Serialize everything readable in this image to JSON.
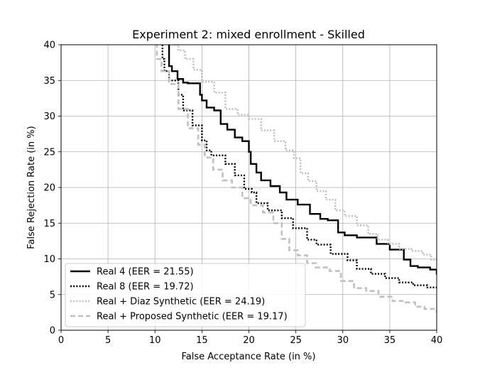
{
  "chart_data": {
    "type": "line",
    "title": "Experiment 2: mixed enrollment - Skilled",
    "xlabel": "False Acceptance Rate (in %)",
    "ylabel": "False Rejection Rate (in %)",
    "xlim": [
      0,
      40
    ],
    "ylim": [
      0,
      40
    ],
    "xticks": [
      "0",
      "5",
      "10",
      "15",
      "20",
      "25",
      "30",
      "35",
      "40"
    ],
    "yticks": [
      "0",
      "5",
      "10",
      "15",
      "20",
      "25",
      "30",
      "35",
      "40"
    ],
    "grid": true,
    "legend_position": "lower-left",
    "series": [
      {
        "name": "Real 4 (EER = 21.55)",
        "color": "#000000",
        "dash": "solid",
        "x": [
          11.5,
          11.5,
          11.8,
          12.4,
          13.0,
          13.5,
          14.8,
          15.0,
          15.5,
          16.3,
          17.0,
          17.7,
          18.5,
          19.3,
          20.0,
          20.2,
          20.8,
          21.3,
          22.3,
          23.3,
          24.0,
          25.2,
          26.5,
          27.6,
          28.4,
          29.5,
          30.2,
          31.5,
          33.6,
          35.0,
          36.5,
          37.2,
          38.0,
          39.3,
          40.0
        ],
        "y": [
          40.0,
          37.0,
          36.3,
          35.2,
          34.7,
          34.6,
          33.0,
          32.2,
          31.2,
          30.8,
          28.9,
          28.1,
          27.0,
          26.5,
          25.0,
          23.3,
          22.1,
          21.0,
          20.2,
          19.3,
          18.3,
          17.6,
          16.3,
          15.6,
          15.4,
          13.7,
          13.3,
          13.0,
          12.1,
          11.3,
          9.9,
          9.0,
          8.8,
          8.5,
          7.8
        ]
      },
      {
        "name": "Real 8 (EER = 19.72)",
        "color": "#000000",
        "dash": "dotted",
        "x": [
          10.8,
          10.8,
          11.0,
          11.5,
          12.5,
          13.0,
          14.0,
          15.0,
          15.5,
          16.0,
          17.5,
          18.5,
          19.5,
          20.3,
          20.8,
          22.0,
          23.5,
          24.7,
          26.2,
          27.2,
          28.7,
          30.5,
          31.5,
          33.0,
          34.5,
          36.0,
          37.5,
          39.0,
          40.0
        ],
        "y": [
          40.0,
          38.0,
          36.3,
          35.0,
          33.0,
          30.8,
          28.7,
          26.6,
          25.2,
          24.5,
          23.3,
          21.7,
          19.8,
          19.3,
          17.8,
          16.8,
          15.7,
          14.3,
          12.7,
          12.0,
          10.7,
          9.8,
          8.6,
          7.9,
          7.3,
          6.7,
          6.3,
          6.0,
          5.9
        ]
      },
      {
        "name": "Real + Diaz Synthetic (EER = 24.19)",
        "color": "#c0c0c0",
        "dash": "dotted",
        "x": [
          12.0,
          12.5,
          13.2,
          14.1,
          15.0,
          16.3,
          17.5,
          18.8,
          20.0,
          21.3,
          22.7,
          23.9,
          24.8,
          25.5,
          26.3,
          27.2,
          28.2,
          29.2,
          30.2,
          31.5,
          32.7,
          33.7,
          34.8,
          36.0,
          37.3,
          38.5,
          39.4,
          40.0
        ],
        "y": [
          40.0,
          39.2,
          38.0,
          36.5,
          34.8,
          33.3,
          31.0,
          30.2,
          29.6,
          28.0,
          26.5,
          25.2,
          24.1,
          22.0,
          20.9,
          19.5,
          18.3,
          16.8,
          16.0,
          14.7,
          13.5,
          12.7,
          12.1,
          11.4,
          11.1,
          10.6,
          9.9,
          9.6
        ]
      },
      {
        "name": "Real + Proposed Synthetic (EER = 19.17)",
        "color": "#c0c0c0",
        "dash": "dashed",
        "x": [
          10.0,
          10.2,
          10.7,
          11.5,
          12.5,
          13.5,
          14.6,
          15.3,
          16.2,
          17.2,
          18.2,
          19.3,
          20.2,
          21.5,
          22.6,
          23.5,
          24.3,
          25.2,
          26.2,
          27.1,
          28.6,
          29.8,
          31.2,
          32.5,
          33.8,
          35.3,
          36.7,
          37.7,
          38.7,
          40.0
        ],
        "y": [
          40.0,
          38.0,
          36.3,
          34.5,
          31.0,
          28.3,
          26.0,
          24.2,
          22.5,
          21.0,
          20.0,
          18.5,
          17.5,
          16.5,
          15.0,
          12.8,
          11.2,
          10.5,
          9.4,
          8.8,
          8.3,
          6.9,
          5.9,
          5.5,
          4.7,
          4.1,
          3.9,
          3.3,
          3.0,
          2.4
        ]
      }
    ]
  }
}
